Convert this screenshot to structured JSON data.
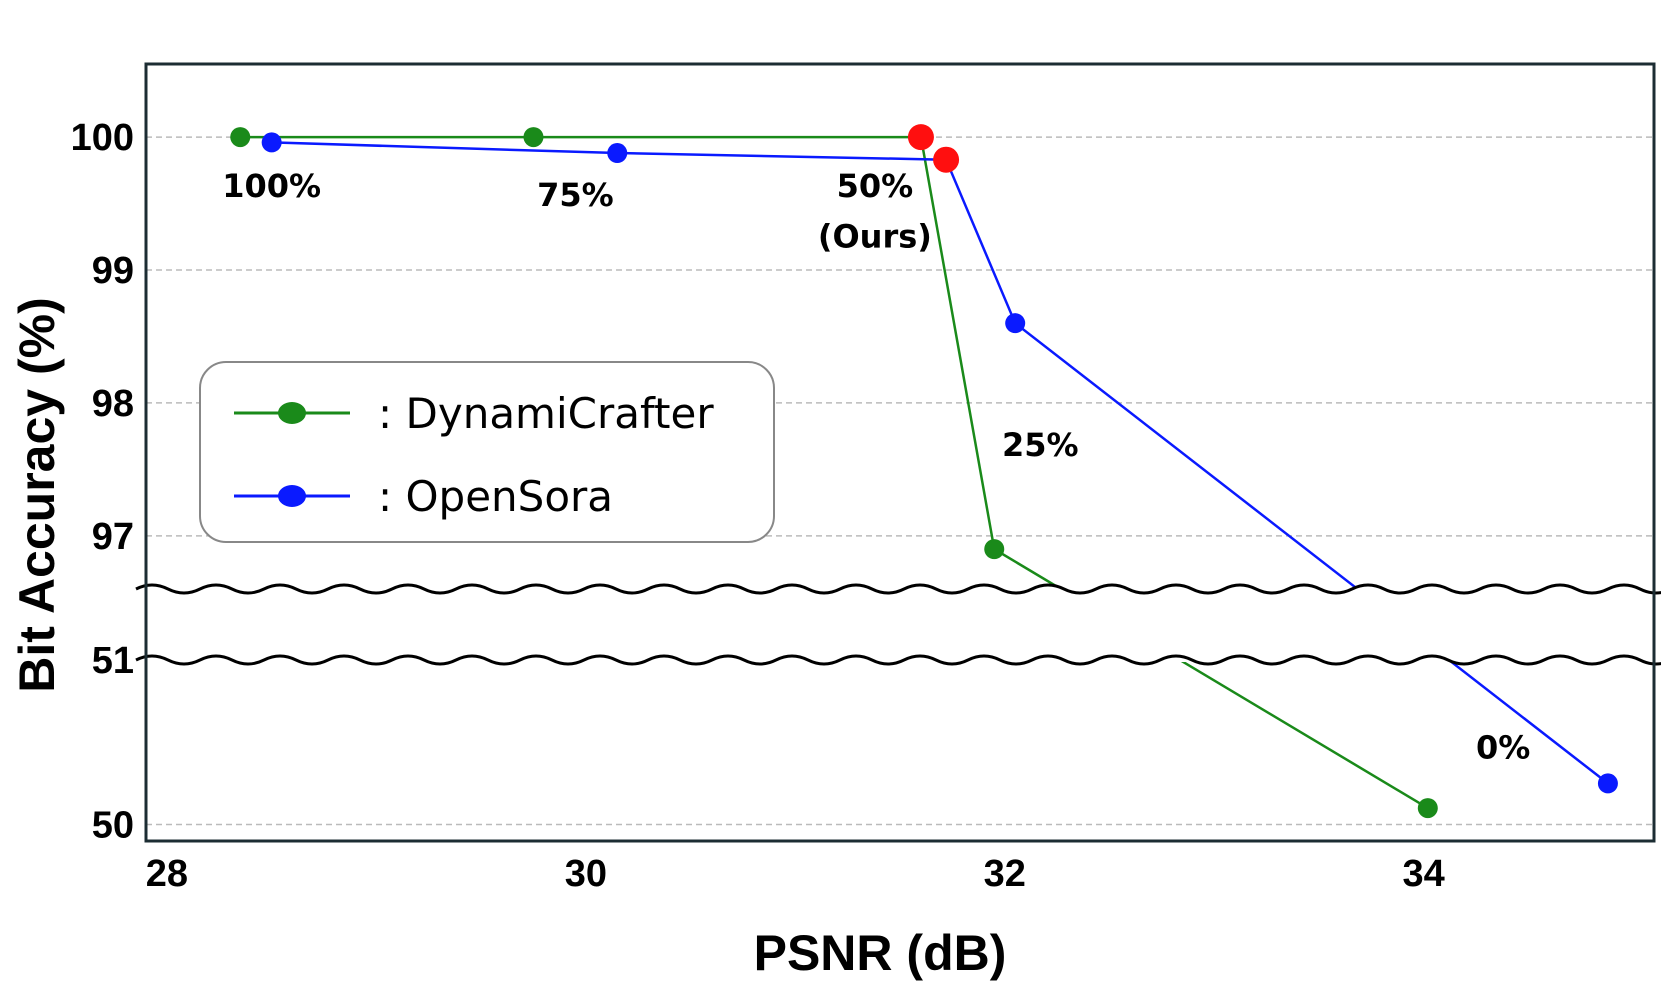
{
  "chart_data": {
    "type": "line",
    "title": "",
    "xlabel": "PSNR (dB)",
    "ylabel": "Bit Accuracy (%)",
    "xlim": [
      27.9,
      35.1
    ],
    "x_ticks": [
      "28",
      "30",
      "32",
      "34"
    ],
    "y_ticks_upper": [
      "97",
      "98",
      "99",
      "100"
    ],
    "y_ticks_lower": [
      "50",
      "51"
    ],
    "ylim_upper": [
      96.6,
      100.55
    ],
    "ylim_lower": [
      49.9,
      51.0
    ],
    "broken_y_axis": true,
    "grid": "horizontal dashed",
    "legend_position": "center-left",
    "series": [
      {
        "name": "DynamiCrafter",
        "color": "#1a8a1a",
        "points": [
          {
            "x": 28.35,
            "y": 100.0
          },
          {
            "x": 29.75,
            "y": 100.0
          },
          {
            "x": 31.6,
            "y": 100.0
          },
          {
            "x": 31.95,
            "y": 96.9
          },
          {
            "x": 34.02,
            "y": 50.1
          }
        ],
        "highlight_index": 2
      },
      {
        "name": "OpenSora",
        "color": "#0a1aff",
        "points": [
          {
            "x": 28.5,
            "y": 99.96
          },
          {
            "x": 30.15,
            "y": 99.88
          },
          {
            "x": 31.72,
            "y": 99.83
          },
          {
            "x": 32.05,
            "y": 98.6
          },
          {
            "x": 34.88,
            "y": 50.25
          }
        ],
        "highlight_index": 2
      }
    ],
    "highlight_color": "#ff0f0f",
    "annotations": [
      {
        "text": "100%",
        "x": 28.5,
        "y": 99.55
      },
      {
        "text": "75%",
        "x": 29.95,
        "y": 99.48
      },
      {
        "text": "50%",
        "x": 31.38,
        "y": 99.55
      },
      {
        "text": "(Ours)",
        "x": 31.38,
        "y": 99.17
      },
      {
        "text": "25%",
        "x": 32.17,
        "y": 97.6
      },
      {
        "text": "0%",
        "x": 34.38,
        "y": 50.4
      }
    ]
  }
}
